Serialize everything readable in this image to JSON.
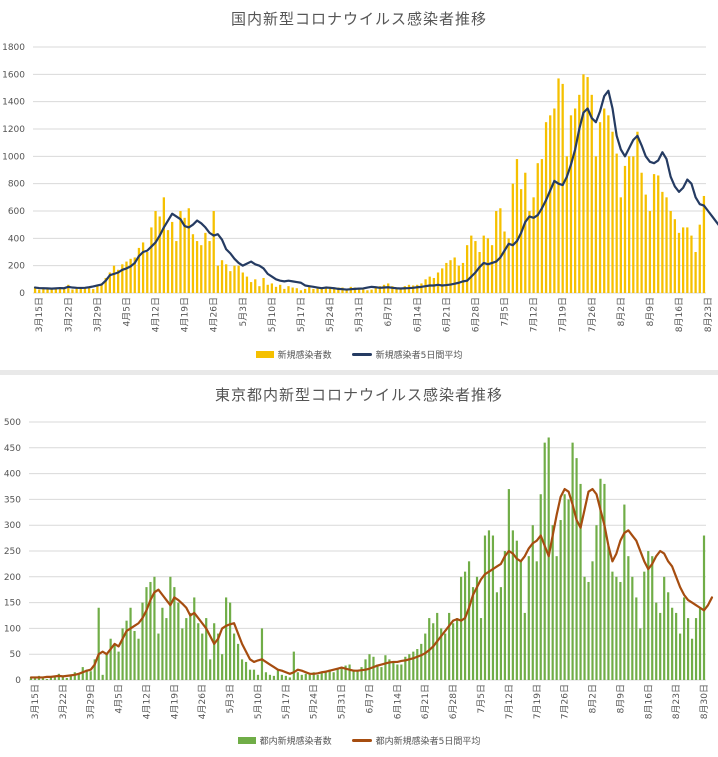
{
  "chart_data": [
    {
      "type": "bar",
      "title": "国内新型コロナウイルス感染者推移",
      "ylim": [
        0,
        1800
      ],
      "yticks": [
        0,
        200,
        400,
        600,
        800,
        1000,
        1200,
        1400,
        1600,
        1800
      ],
      "grid": true,
      "legend_position": "bottom",
      "xtick_labels": [
        "3月15日",
        "3月22日",
        "3月29日",
        "4月5日",
        "4月12日",
        "4月19日",
        "4月26日",
        "5月3日",
        "5月10日",
        "5月17日",
        "5月24日",
        "5月31日",
        "6月7日",
        "6月14日",
        "6月21日",
        "6月28日",
        "7月5日",
        "7月12日",
        "7月19日",
        "7月26日",
        "8月2日",
        "8月9日",
        "8月16日",
        "8月23日",
        "8月30日",
        "9月6日"
      ],
      "colors": {
        "bars": "#f5c000",
        "line": "#253b62"
      },
      "series": [
        {
          "name": "新規感染者数",
          "kind": "bar",
          "values": [
            44,
            25,
            40,
            32,
            31,
            28,
            30,
            37,
            60,
            26,
            43,
            40,
            37,
            38,
            29,
            60,
            60,
            110,
            150,
            200,
            170,
            210,
            230,
            250,
            260,
            330,
            370,
            300,
            480,
            600,
            560,
            700,
            460,
            520,
            380,
            600,
            550,
            620,
            430,
            380,
            350,
            440,
            380,
            600,
            200,
            240,
            210,
            160,
            200,
            200,
            150,
            120,
            80,
            100,
            50,
            110,
            60,
            70,
            45,
            60,
            30,
            50,
            40,
            35,
            20,
            30,
            50,
            30,
            35,
            40,
            40,
            45,
            35,
            40,
            40,
            20,
            45,
            40,
            30,
            25,
            20,
            25,
            40,
            50,
            60,
            70,
            50,
            40,
            35,
            50,
            60,
            55,
            60,
            70,
            100,
            120,
            110,
            150,
            180,
            220,
            240,
            260,
            200,
            220,
            350,
            420,
            380,
            300,
            420,
            400,
            350,
            600,
            620,
            450,
            400,
            800,
            980,
            760,
            880,
            600,
            700,
            950,
            980,
            1250,
            1300,
            1350,
            1570,
            1530,
            1000,
            1300,
            1350,
            1450,
            1600,
            1580,
            1450,
            1000,
            1250,
            1350,
            1300,
            1180,
            1020,
            700,
            930,
            1000,
            1000,
            1180,
            880,
            720,
            600,
            870,
            860,
            740,
            700,
            600,
            540,
            440,
            480,
            480,
            420,
            300,
            500,
            710
          ]
        },
        {
          "name": "新規感染者5日間平均",
          "kind": "line",
          "values": [
            40,
            36,
            35,
            34,
            32,
            34,
            36,
            35,
            45,
            40,
            38,
            37,
            38,
            42,
            48,
            55,
            62,
            90,
            130,
            140,
            150,
            170,
            180,
            195,
            220,
            270,
            300,
            310,
            340,
            370,
            420,
            480,
            530,
            580,
            560,
            540,
            490,
            480,
            500,
            530,
            510,
            480,
            440,
            420,
            430,
            390,
            320,
            290,
            250,
            220,
            200,
            215,
            230,
            210,
            200,
            180,
            140,
            120,
            100,
            90,
            85,
            90,
            85,
            80,
            75,
            55,
            50,
            45,
            40,
            35,
            40,
            38,
            35,
            30,
            28,
            25,
            28,
            30,
            32,
            33,
            40,
            45,
            42,
            38,
            40,
            42,
            38,
            35,
            33,
            35,
            36,
            38,
            42,
            45,
            50,
            55,
            55,
            60,
            55,
            58,
            62,
            68,
            75,
            85,
            90,
            120,
            150,
            190,
            220,
            210,
            220,
            230,
            260,
            310,
            360,
            350,
            380,
            440,
            520,
            560,
            550,
            570,
            620,
            680,
            750,
            820,
            800,
            790,
            850,
            940,
            1050,
            1200,
            1320,
            1350,
            1280,
            1250,
            1330,
            1440,
            1480,
            1350,
            1150,
            1050,
            1000,
            1060,
            1120,
            1150,
            1080,
            1000,
            960,
            950,
            970,
            1030,
            980,
            850,
            780,
            740,
            770,
            830,
            800,
            700,
            650,
            640,
            600,
            560,
            520,
            480,
            460,
            490,
            490
          ]
        }
      ]
    },
    {
      "type": "bar",
      "title": "東京都内新型コロナウイルス感染者推移",
      "ylim": [
        0,
        500
      ],
      "yticks": [
        0,
        50,
        100,
        150,
        200,
        250,
        300,
        350,
        400,
        450,
        500
      ],
      "grid": true,
      "legend_position": "bottom",
      "xtick_labels": [
        "3月15日",
        "3月22日",
        "3月29日",
        "4月5日",
        "4月12日",
        "4月19日",
        "4月26日",
        "5月3日",
        "5月10日",
        "5月17日",
        "5月24日",
        "5月31日",
        "6月7日",
        "6月14日",
        "6月21日",
        "6月28日",
        "7月5日",
        "7月12日",
        "7月19日",
        "7月26日",
        "8月2日",
        "8月9日",
        "8月16日",
        "8月23日",
        "8月30日",
        "9月6日"
      ],
      "colors": {
        "bars": "#70ad47",
        "line": "#a64d10"
      },
      "series": [
        {
          "name": "都内新規感染者数",
          "kind": "bar",
          "values": [
            5,
            3,
            8,
            4,
            2,
            6,
            5,
            12,
            7,
            4,
            8,
            15,
            12,
            25,
            20,
            17,
            40,
            140,
            10,
            50,
            80,
            70,
            55,
            100,
            115,
            140,
            95,
            80,
            150,
            180,
            190,
            200,
            90,
            140,
            120,
            200,
            180,
            150,
            100,
            120,
            130,
            160,
            110,
            90,
            120,
            40,
            110,
            90,
            50,
            160,
            150,
            90,
            70,
            40,
            35,
            20,
            20,
            10,
            100,
            15,
            10,
            8,
            20,
            10,
            8,
            5,
            55,
            15,
            10,
            12,
            10,
            15,
            10,
            15,
            18,
            20,
            15,
            22,
            25,
            28,
            30,
            20,
            18,
            25,
            40,
            50,
            45,
            30,
            25,
            48,
            40,
            35,
            30,
            30,
            45,
            50,
            55,
            60,
            70,
            90,
            120,
            110,
            130,
            100,
            90,
            130,
            110,
            120,
            200,
            210,
            230,
            180,
            200,
            120,
            280,
            290,
            280,
            170,
            180,
            250,
            370,
            290,
            270,
            230,
            130,
            240,
            300,
            230,
            360,
            460,
            470,
            300,
            240,
            310,
            360,
            350,
            460,
            430,
            380,
            200,
            190,
            230,
            300,
            390,
            380,
            260,
            210,
            200,
            190,
            340,
            240,
            200,
            160,
            100,
            210,
            250,
            240,
            150,
            130,
            200,
            170,
            140,
            130,
            90,
            160,
            120,
            80,
            120,
            140,
            280
          ]
        },
        {
          "name": "都内新規感染者5日間平均",
          "kind": "line",
          "values": [
            5,
            5,
            5,
            5,
            6,
            6,
            7,
            8,
            7,
            8,
            9,
            10,
            12,
            15,
            18,
            20,
            30,
            50,
            55,
            50,
            60,
            70,
            65,
            80,
            95,
            100,
            105,
            110,
            120,
            135,
            155,
            170,
            175,
            165,
            155,
            145,
            160,
            155,
            148,
            140,
            125,
            130,
            120,
            110,
            100,
            85,
            70,
            80,
            100,
            105,
            108,
            110,
            90,
            70,
            55,
            40,
            35,
            38,
            40,
            35,
            30,
            25,
            20,
            18,
            15,
            12,
            15,
            20,
            18,
            15,
            12,
            12,
            13,
            15,
            16,
            18,
            20,
            22,
            24,
            22,
            20,
            18,
            18,
            19,
            20,
            22,
            25,
            28,
            30,
            32,
            34,
            35,
            35,
            37,
            38,
            40,
            42,
            45,
            48,
            52,
            58,
            65,
            75,
            85,
            95,
            105,
            115,
            118,
            115,
            120,
            140,
            165,
            180,
            195,
            205,
            210,
            215,
            220,
            225,
            240,
            250,
            245,
            235,
            230,
            240,
            255,
            265,
            270,
            280,
            260,
            240,
            280,
            320,
            355,
            370,
            365,
            340,
            310,
            295,
            330,
            365,
            370,
            360,
            330,
            300,
            260,
            230,
            245,
            270,
            285,
            290,
            280,
            270,
            250,
            230,
            215,
            225,
            240,
            250,
            245,
            230,
            220,
            200,
            180,
            165,
            155,
            150,
            145,
            140,
            135,
            145,
            160
          ]
        }
      ]
    }
  ]
}
